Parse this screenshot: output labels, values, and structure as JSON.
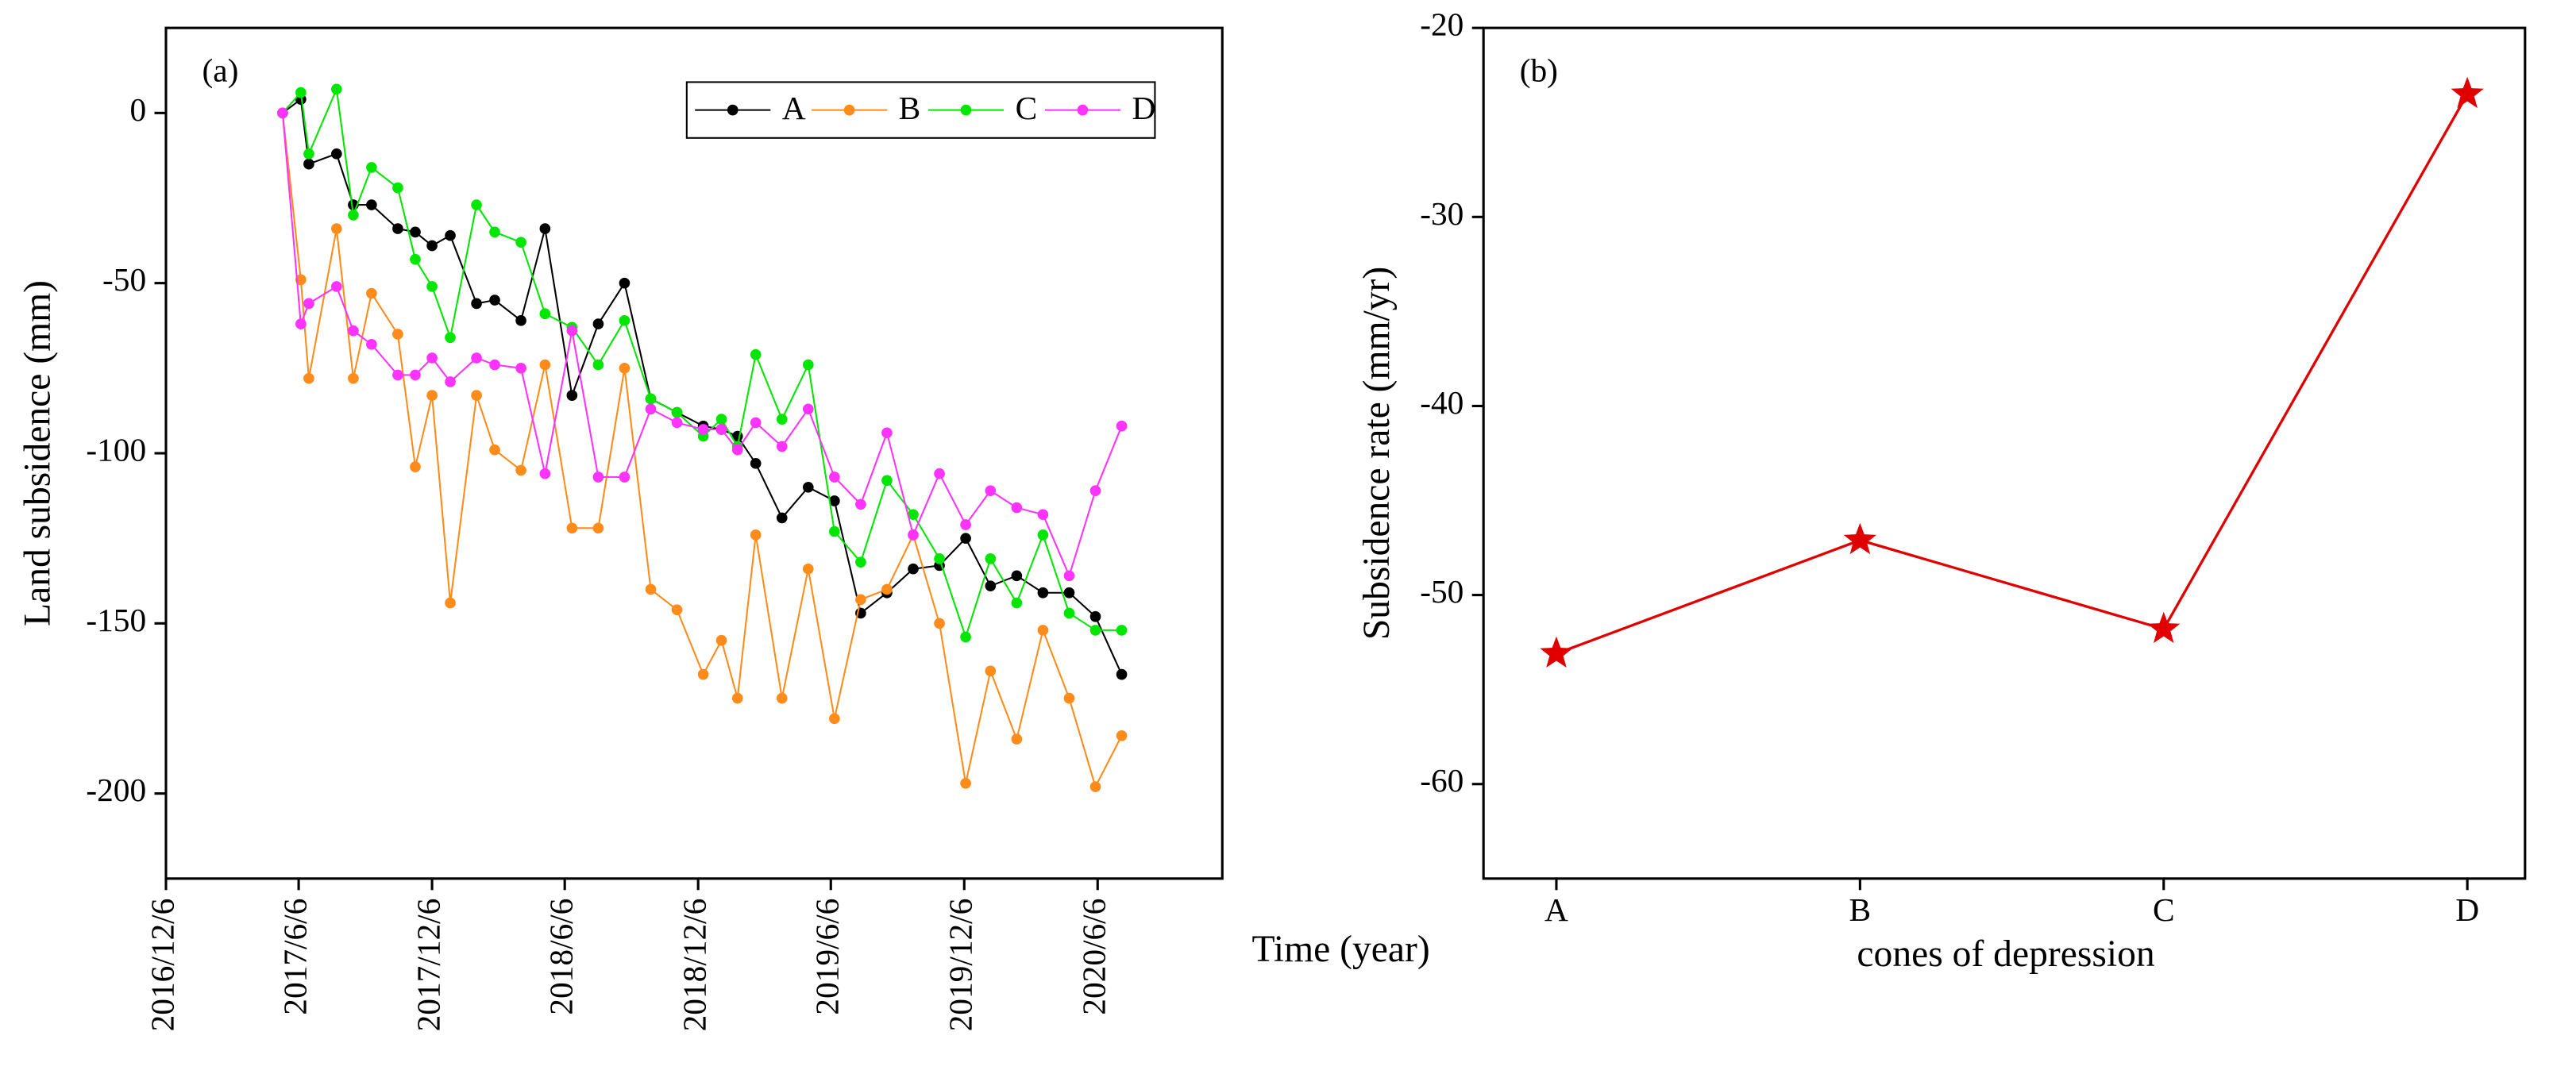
{
  "chart_data": [
    {
      "type": "line",
      "panel_label": "(a)",
      "x_label": "Time (year)",
      "y_label": "Land subsidence (mm)",
      "x": [
        "2017/5/15",
        "2017/6/9",
        "2017/6/20",
        "2017/7/28",
        "2017/8/20",
        "2017/9/14",
        "2017/10/20",
        "2017/11/13",
        "2017/12/6",
        "2017/12/31",
        "2018/2/5",
        "2018/3/2",
        "2018/4/7",
        "2018/5/10",
        "2018/6/16",
        "2018/7/22",
        "2018/8/27",
        "2018/10/2",
        "2018/11/7",
        "2018/12/13",
        "2019/1/7",
        "2019/1/29",
        "2019/2/23",
        "2019/3/31",
        "2019/5/6",
        "2019/6/11",
        "2019/7/17",
        "2019/8/22",
        "2019/9/27",
        "2019/11/2",
        "2019/12/8",
        "2020/1/11",
        "2020/2/16",
        "2020/3/23",
        "2020/4/28",
        "2020/6/3",
        "2020/7/9"
      ],
      "series": [
        {
          "name": "A",
          "color": "#000000",
          "values": [
            0,
            4,
            -15,
            -12,
            -27,
            -27,
            -34,
            -35,
            -39,
            -36,
            -56,
            -55,
            -61,
            -34,
            -83,
            -62,
            -50,
            -84,
            -88,
            -92,
            -93,
            -95,
            -103,
            -119,
            -110,
            -114,
            -147,
            -141,
            -134,
            -133,
            -125,
            -139,
            -136,
            -141,
            -141,
            -148,
            -165
          ]
        },
        {
          "name": "B",
          "color": "#ff8c1a",
          "values": [
            0,
            -49,
            -78,
            -34,
            -78,
            -53,
            -65,
            -104,
            -83,
            -144,
            -83,
            -99,
            -105,
            -74,
            -122,
            -122,
            -75,
            -140,
            -146,
            -165,
            -155,
            -172,
            -124,
            -172,
            -134,
            -178,
            -143,
            -140,
            -124,
            -150,
            -197,
            -164,
            -184,
            -152,
            -172,
            -198,
            -183
          ]
        },
        {
          "name": "C",
          "color": "#00e600",
          "values": [
            0,
            6,
            -12,
            7,
            -30,
            -16,
            -22,
            -43,
            -51,
            -66,
            -27,
            -35,
            -38,
            -59,
            -63,
            -74,
            -61,
            -84,
            -88,
            -95,
            -90,
            -98,
            -71,
            -90,
            -74,
            -123,
            -132,
            -108,
            -118,
            -131,
            -154,
            -131,
            -144,
            -124,
            -147,
            -152,
            -152
          ]
        },
        {
          "name": "D",
          "color": "#ff33ff",
          "values": [
            0,
            -62,
            -56,
            -51,
            -64,
            -68,
            -77,
            -77,
            -72,
            -79,
            -72,
            -74,
            -75,
            -106,
            -64,
            -107,
            -107,
            -87,
            -91,
            -93,
            -93,
            -99,
            -91,
            -98,
            -87,
            -107,
            -115,
            -94,
            -124,
            -106,
            -121,
            -111,
            -116,
            -118,
            -136,
            -111,
            -92
          ]
        }
      ],
      "xlim": [
        "2016/12/6",
        "2020/11/24"
      ],
      "xticks": [
        "2016/12/6",
        "2017/6/6",
        "2017/12/6",
        "2018/6/6",
        "2018/12/6",
        "2019/6/6",
        "2019/12/6",
        "2020/6/6"
      ],
      "ylim": [
        -225,
        25
      ],
      "yticks": [
        0,
        -50,
        -100,
        -150,
        -200
      ],
      "legend": "upper right"
    },
    {
      "type": "line",
      "panel_label": "(b)",
      "x_label": "cones of depression",
      "y_label": "Subsidence rate (mm/yr)",
      "categories": [
        "A",
        "B",
        "C",
        "D"
      ],
      "values": [
        -53.1,
        -47.1,
        -51.8,
        -23.5
      ],
      "color": "#e00000",
      "marker": "star",
      "ylim": [
        -65,
        -20
      ],
      "yticks": [
        -20,
        -30,
        -40,
        -50,
        -60
      ]
    }
  ]
}
